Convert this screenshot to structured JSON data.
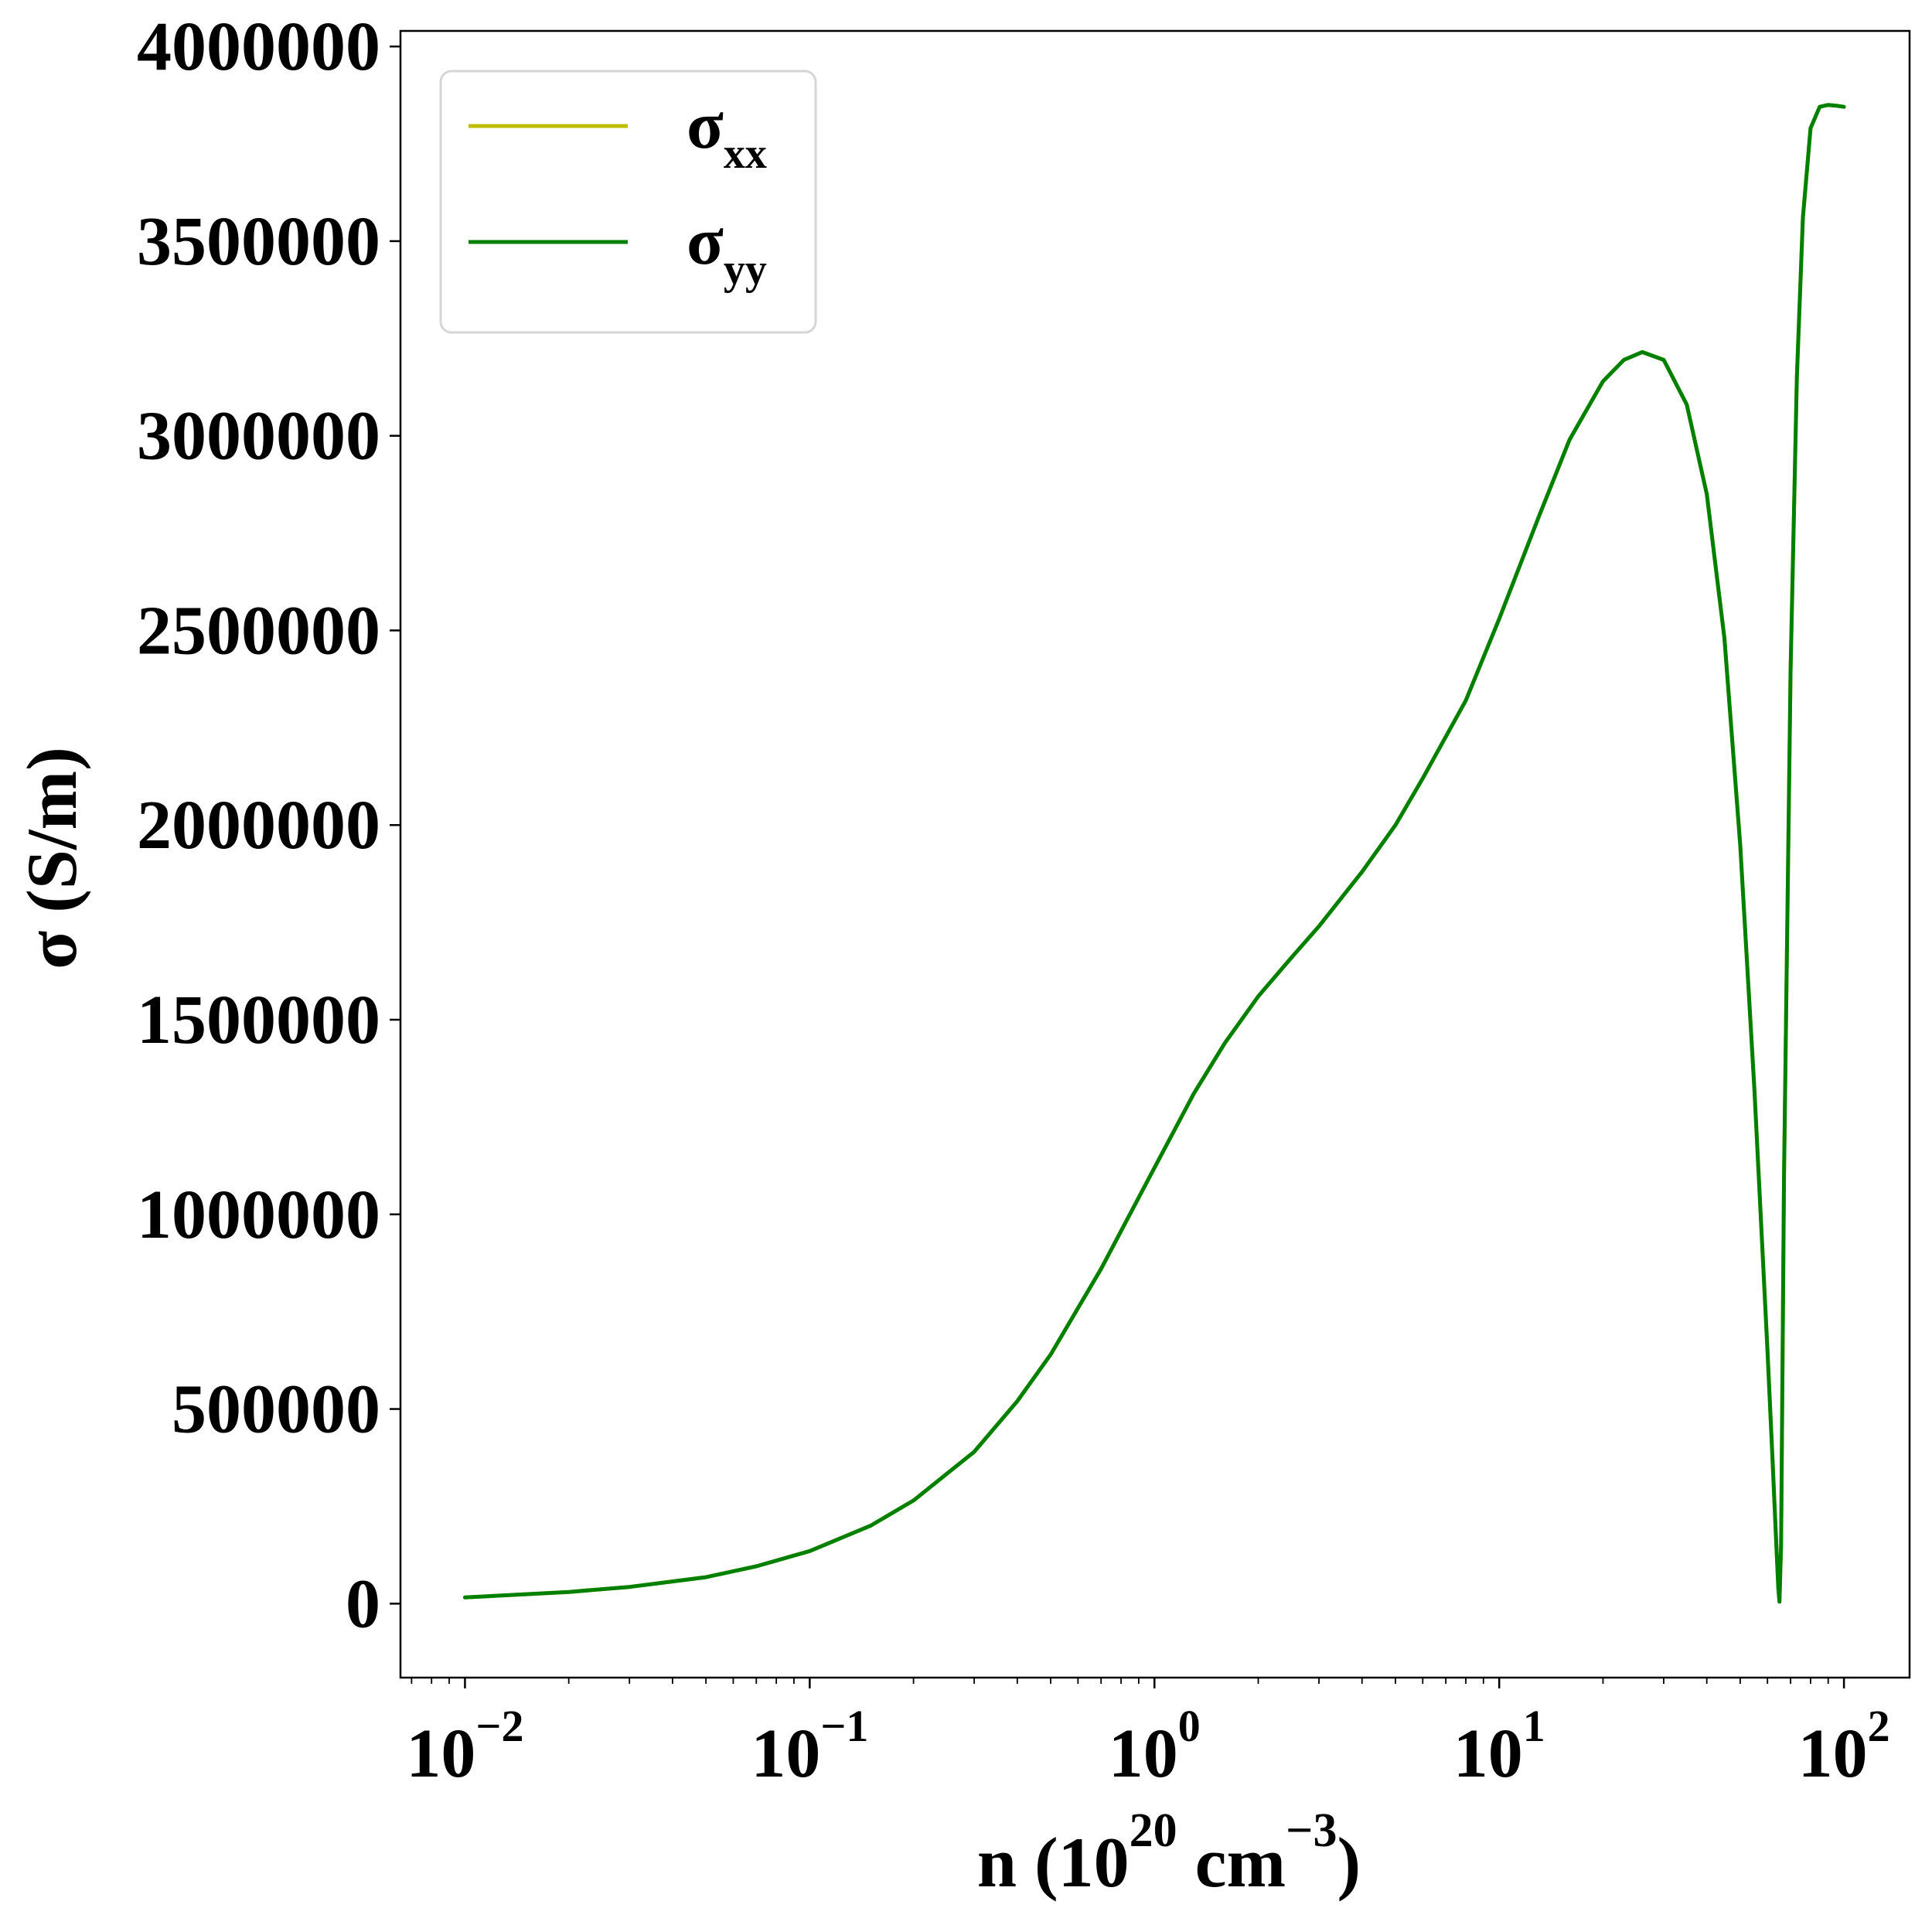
{
  "chart_data": {
    "type": "line",
    "x_scale": "log",
    "xlim": [
      0.0065,
      155
    ],
    "ylim": [
      -190000,
      4040000
    ],
    "grid": false,
    "legend_position": "top-left",
    "x_ticks": [
      {
        "value": 0.01,
        "base": "10",
        "exp": "−2"
      },
      {
        "value": 0.1,
        "base": "10",
        "exp": "−1"
      },
      {
        "value": 1,
        "base": "10",
        "exp": "0"
      },
      {
        "value": 10,
        "base": "10",
        "exp": "1"
      },
      {
        "value": 100,
        "base": "10",
        "exp": "2"
      }
    ],
    "y_ticks": [
      {
        "value": 0,
        "label": "0"
      },
      {
        "value": 500000,
        "label": "500000"
      },
      {
        "value": 1000000,
        "label": "1000000"
      },
      {
        "value": 1500000,
        "label": "1500000"
      },
      {
        "value": 2000000,
        "label": "2000000"
      },
      {
        "value": 2500000,
        "label": "2500000"
      },
      {
        "value": 3000000,
        "label": "3000000"
      },
      {
        "value": 3500000,
        "label": "3500000"
      },
      {
        "value": 4000000,
        "label": "4000000"
      }
    ],
    "xlabel": {
      "main": "n (10",
      "sup1": "20",
      "mid": " cm",
      "sup2": "−3",
      "end": ")"
    },
    "ylabel": "σ (S/m)",
    "series": [
      {
        "name": "σxx",
        "name_main": "σ",
        "name_sub": "xx",
        "color": "#bfbf00",
        "x": [
          0.01,
          0.02,
          0.03,
          0.05,
          0.07,
          0.1,
          0.15,
          0.2,
          0.3,
          0.4,
          0.5,
          0.7,
          1.0,
          1.3,
          1.6,
          2.0,
          2.5,
          3.0,
          4.0,
          5.0,
          6.0,
          8.0,
          10.0,
          13.0,
          16.0,
          20.0,
          23.0,
          26.0,
          30.0,
          35.0,
          40.0,
          45.0,
          50.0,
          55.0,
          60.0,
          62.0,
          63.5,
          64.5,
          65.0,
          65.7,
          67.0,
          70.0,
          73.0,
          76.0,
          80.0,
          85.0,
          90.0,
          95.0,
          100.0
        ],
        "y": [
          16000,
          30000,
          43000,
          68000,
          96000,
          135000,
          200000,
          265000,
          390000,
          520000,
          640000,
          860000,
          1120000,
          1310000,
          1440000,
          1560000,
          1660000,
          1740000,
          1880000,
          2000000,
          2120000,
          2320000,
          2530000,
          2790000,
          2990000,
          3140000,
          3195000,
          3215000,
          3195000,
          3080000,
          2850000,
          2480000,
          1950000,
          1320000,
          650000,
          380000,
          170000,
          40000,
          5000,
          150000,
          1100000,
          2400000,
          3150000,
          3560000,
          3790000,
          3845000,
          3850000,
          3848000,
          3845000
        ]
      },
      {
        "name": "σyy",
        "name_main": "σ",
        "name_sub": "yy",
        "color": "#008000",
        "x": [
          0.01,
          0.02,
          0.03,
          0.05,
          0.07,
          0.1,
          0.15,
          0.2,
          0.3,
          0.4,
          0.5,
          0.7,
          1.0,
          1.3,
          1.6,
          2.0,
          2.5,
          3.0,
          4.0,
          5.0,
          6.0,
          8.0,
          10.0,
          13.0,
          16.0,
          20.0,
          23.0,
          26.0,
          30.0,
          35.0,
          40.0,
          45.0,
          50.0,
          55.0,
          60.0,
          62.0,
          63.5,
          64.5,
          65.0,
          65.7,
          67.0,
          70.0,
          73.0,
          76.0,
          80.0,
          85.0,
          90.0,
          95.0,
          100.0
        ],
        "y": [
          16000,
          30000,
          43000,
          68000,
          96000,
          135000,
          200000,
          265000,
          390000,
          520000,
          640000,
          860000,
          1120000,
          1310000,
          1440000,
          1560000,
          1660000,
          1740000,
          1880000,
          2000000,
          2120000,
          2320000,
          2530000,
          2790000,
          2990000,
          3140000,
          3195000,
          3215000,
          3195000,
          3080000,
          2850000,
          2480000,
          1950000,
          1320000,
          650000,
          380000,
          170000,
          40000,
          5000,
          150000,
          1100000,
          2400000,
          3150000,
          3560000,
          3790000,
          3845000,
          3850000,
          3848000,
          3845000
        ]
      }
    ]
  }
}
